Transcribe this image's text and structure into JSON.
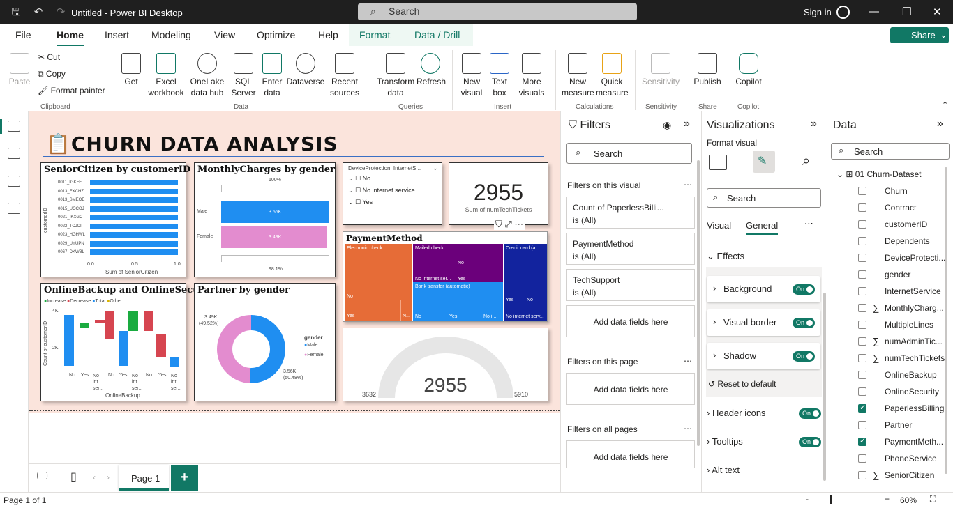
{
  "titlebar": {
    "title": "Untitled - Power BI Desktop",
    "search": "Search",
    "signin": "Sign in"
  },
  "menu": {
    "file": "File",
    "home": "Home",
    "insert": "Insert",
    "modeling": "Modeling",
    "view": "View",
    "optimize": "Optimize",
    "help": "Help",
    "format": "Format",
    "data_drill": "Data / Drill",
    "share": "Share"
  },
  "ribbon": {
    "paste": "Paste",
    "cut": "Cut",
    "copy": "Copy",
    "format_painter": "Format painter",
    "clipboard": "Clipboard",
    "get_data": "Get data",
    "get_data_sub": "data",
    "excel": "Excel",
    "excel_sub": "workbook",
    "onelake": "OneLake",
    "onelake_sub": "data hub",
    "sql": "SQL",
    "sql_sub": "Server",
    "enter": "Enter",
    "enter_sub": "data",
    "dataverse": "Dataverse",
    "recent": "Recent",
    "recent_sub": "sources",
    "data_grp": "Data",
    "transform": "Transform",
    "transform_sub": "data",
    "refresh": "Refresh",
    "queries": "Queries",
    "new_visual": "New",
    "new_visual_sub": "visual",
    "text_box": "Text",
    "text_box_sub": "box",
    "more_visuals": "More",
    "more_visuals_sub": "visuals",
    "insert_grp": "Insert",
    "new_measure": "New",
    "new_measure_sub": "measure",
    "quick_measure": "Quick",
    "quick_measure_sub": "measure",
    "calc_grp": "Calculations",
    "sensitivity": "Sensitivity",
    "sensitivity_grp": "Sensitivity",
    "publish": "Publish",
    "share_grp": "Share",
    "copilot": "Copilot",
    "copilot_grp": "Copilot"
  },
  "report": {
    "title": "CHURN DATA ANALYSIS",
    "senior": {
      "title": "SeniorCitizen by customerID",
      "ylabel": "customerID",
      "xlabel": "Sum of SeniorCitizen",
      "ticks": [
        "0.0",
        "0.5",
        "1.0"
      ]
    },
    "monthly": {
      "title": "MonthlyCharges by gender",
      "top": "100%",
      "bottom": "98.1%",
      "labels": [
        "Male",
        "Female"
      ],
      "values": [
        "3.56K",
        "3.49K"
      ]
    },
    "slicer": {
      "title": "DeviceProtection, InternetS...",
      "items": [
        "No",
        "No internet service",
        "Yes"
      ]
    },
    "card": {
      "value": "2955",
      "label": "Sum of numTechTickets"
    },
    "payment": {
      "title": "PaymentMethod"
    },
    "online": {
      "title": "OnlineBackup and OnlineSecurity",
      "legend": [
        "Increase",
        "Decrease",
        "Total",
        "Other"
      ],
      "ylabel": "Count of customerID",
      "xlabel": "OnlineBackup",
      "yticks": [
        "4K",
        "2K"
      ],
      "xticks": [
        "No",
        "Yes",
        "No int... ser...",
        "No",
        "Yes",
        "No int... ser...",
        "No",
        "Yes",
        "No int... ser..."
      ]
    },
    "partner": {
      "title": "Partner by gender",
      "legend_title": "gender",
      "legend": [
        "Male",
        "Female"
      ],
      "female_label": "3.49K",
      "female_pct": "(49.52%)",
      "male_label": "3.56K",
      "male_pct": "(50.48%)"
    },
    "gauge": {
      "value": "2955",
      "min": "3632",
      "max": "5910"
    },
    "page_tab": "Page 1"
  },
  "chart_data": [
    {
      "type": "bar",
      "title": "SeniorCitizen by customerID",
      "categories": [
        "0011_IGKFF",
        "0013_EXCHZ",
        "0013_SMEOE",
        "0015_UOCOJ",
        "0021_IKXGC",
        "0022_TCJCI",
        "0023_HGHWL",
        "0029_UYUPN",
        "0067_DKWBL"
      ],
      "values": [
        1,
        1,
        1,
        1,
        1,
        1,
        1,
        1,
        1
      ],
      "xlabel": "Sum of SeniorCitizen",
      "ylabel": "customerID",
      "xlim": [
        0,
        1
      ]
    },
    {
      "type": "bar",
      "title": "MonthlyCharges by gender",
      "categories": [
        "Male",
        "Female"
      ],
      "values": [
        3560,
        3490
      ]
    },
    {
      "type": "pie",
      "title": "Partner by gender",
      "categories": [
        "Male",
        "Female"
      ],
      "values": [
        3560,
        3490
      ],
      "percent": [
        50.48,
        49.52
      ]
    },
    {
      "type": "treemap",
      "title": "PaymentMethod",
      "categories": [
        "Electronic check",
        "Mailed check",
        "Bank transfer (automatic)",
        "Credit card (automatic)"
      ]
    },
    {
      "type": "gauge",
      "value": 2955,
      "min": 3632,
      "max": 5910
    }
  ],
  "visual_labels": {
    "senior_cats": [
      "0011_IGKFF",
      "0013_EXCHZ",
      "0013_SMEOE",
      "0015_UOCOJ",
      "0021_IKXGC",
      "0022_TCJCI",
      "0023_HGHWL",
      "0029_UYUPN",
      "0067_DKWBL"
    ],
    "tm": {
      "ec": "Electronic check",
      "mc": "Mailed check",
      "bt": "Bank transfer (automatic)",
      "cc": "Credit card (a...",
      "no": "No",
      "yes": "Yes",
      "n": "N...",
      "ni": "No i...",
      "nis": "No internet ser...",
      "nisv": "No internet serv..."
    }
  },
  "filters": {
    "title": "Filters",
    "search": "Search",
    "on_visual": "Filters on this visual",
    "on_page": "Filters on this page",
    "on_all": "Filters on all pages",
    "add": "Add data fields here",
    "cards": [
      {
        "name": "Count of PaperlessBilli...",
        "val": "is (All)"
      },
      {
        "name": "PaymentMethod",
        "val": "is (All)"
      },
      {
        "name": "TechSupport",
        "val": "is (All)"
      }
    ]
  },
  "viz": {
    "title": "Visualizations",
    "format_visual": "Format visual",
    "search": "Search",
    "tab_visual": "Visual",
    "tab_general": "General",
    "effects": "Effects",
    "background": "Background",
    "visual_border": "Visual border",
    "shadow": "Shadow",
    "reset": "Reset to default",
    "header_icons": "Header icons",
    "tooltips": "Tooltips",
    "alt_text": "Alt text",
    "on": "On"
  },
  "data": {
    "title": "Data",
    "search": "Search",
    "table": "01 Churn-Dataset",
    "fields": [
      {
        "name": "Churn",
        "checked": false,
        "sigma": false
      },
      {
        "name": "Contract",
        "checked": false,
        "sigma": false
      },
      {
        "name": "customerID",
        "checked": false,
        "sigma": false
      },
      {
        "name": "Dependents",
        "checked": false,
        "sigma": false
      },
      {
        "name": "DeviceProtecti...",
        "checked": false,
        "sigma": false
      },
      {
        "name": "gender",
        "checked": false,
        "sigma": false
      },
      {
        "name": "InternetService",
        "checked": false,
        "sigma": false
      },
      {
        "name": "MonthlyCharg...",
        "checked": false,
        "sigma": true
      },
      {
        "name": "MultipleLines",
        "checked": false,
        "sigma": false
      },
      {
        "name": "numAdminTic...",
        "checked": false,
        "sigma": true
      },
      {
        "name": "numTechTickets",
        "checked": false,
        "sigma": true
      },
      {
        "name": "OnlineBackup",
        "checked": false,
        "sigma": false
      },
      {
        "name": "OnlineSecurity",
        "checked": false,
        "sigma": false
      },
      {
        "name": "PaperlessBilling",
        "checked": true,
        "sigma": false
      },
      {
        "name": "Partner",
        "checked": false,
        "sigma": false
      },
      {
        "name": "PaymentMeth...",
        "checked": true,
        "sigma": false
      },
      {
        "name": "PhoneService",
        "checked": false,
        "sigma": false
      },
      {
        "name": "SeniorCitizen",
        "checked": false,
        "sigma": true
      }
    ]
  },
  "status": {
    "page": "Page 1 of 1",
    "zoom": "60%"
  }
}
